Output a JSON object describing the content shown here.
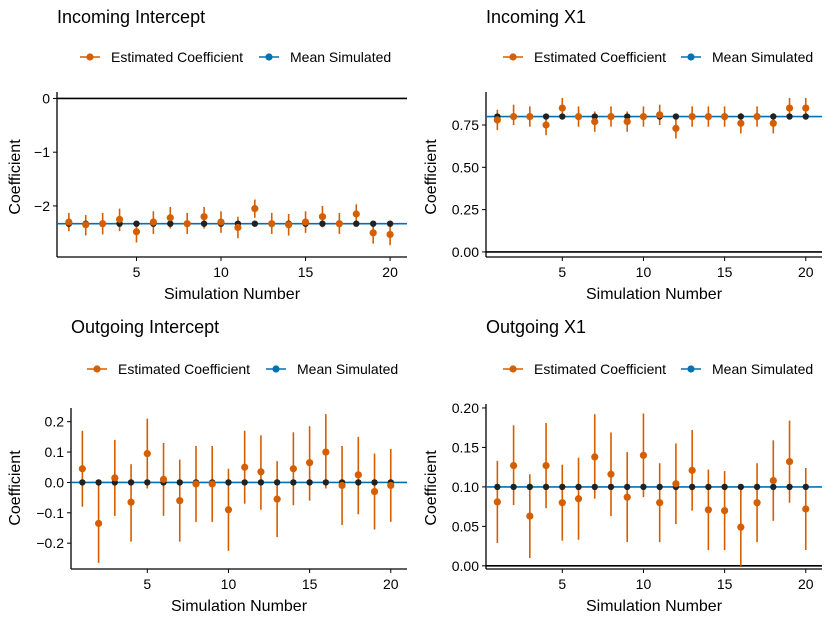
{
  "colors": {
    "estimated": "#d55e00",
    "simulated": "#0072b2",
    "axis": "#000000",
    "mean_point": "#222222"
  },
  "legend": {
    "estimated_label": "Estimated Coefficient",
    "simulated_label": "Mean Simulated"
  },
  "chart_data": [
    {
      "type": "scatter",
      "title": "Incoming Intercept",
      "xlabel": "Simulation Number",
      "ylabel": "Coefficient",
      "x": [
        1,
        2,
        3,
        4,
        5,
        6,
        7,
        8,
        9,
        10,
        11,
        12,
        13,
        14,
        15,
        16,
        17,
        18,
        19,
        20
      ],
      "xticks": [
        5,
        10,
        15,
        20
      ],
      "xlim": [
        0.3,
        21.0
      ],
      "ylim": [
        -2.95,
        0.12
      ],
      "yticks": [
        0,
        -1,
        -2
      ],
      "ytick_labels": [
        "0",
        "−1",
        "−2"
      ],
      "hline": 0,
      "mean_simulated": -2.33,
      "series": [
        {
          "name": "Estimated Coefficient",
          "values": [
            -2.3,
            -2.35,
            -2.33,
            -2.25,
            -2.48,
            -2.3,
            -2.22,
            -2.33,
            -2.2,
            -2.3,
            -2.4,
            -2.05,
            -2.33,
            -2.35,
            -2.3,
            -2.2,
            -2.33,
            -2.15,
            -2.5,
            -2.53
          ],
          "lower": [
            -2.47,
            -2.55,
            -2.53,
            -2.47,
            -2.68,
            -2.52,
            -2.42,
            -2.52,
            -2.42,
            -2.5,
            -2.6,
            -2.22,
            -2.52,
            -2.55,
            -2.5,
            -2.4,
            -2.52,
            -2.35,
            -2.7,
            -2.73
          ],
          "upper": [
            -2.13,
            -2.17,
            -2.13,
            -2.05,
            -2.28,
            -2.1,
            -2.02,
            -2.13,
            -2.02,
            -2.1,
            -2.2,
            -1.88,
            -2.13,
            -2.15,
            -2.1,
            -2.0,
            -2.13,
            -1.97,
            -2.3,
            -2.33
          ]
        }
      ]
    },
    {
      "type": "scatter",
      "title": "Incoming X1",
      "xlabel": "Simulation Number",
      "ylabel": "Coefficient",
      "x": [
        1,
        2,
        3,
        4,
        5,
        6,
        7,
        8,
        9,
        10,
        11,
        12,
        13,
        14,
        15,
        16,
        17,
        18,
        19,
        20
      ],
      "xticks": [
        5,
        10,
        15,
        20
      ],
      "xlim": [
        0.3,
        21.0
      ],
      "ylim": [
        -0.03,
        0.945
      ],
      "yticks": [
        0,
        0.25,
        0.5,
        0.75
      ],
      "ytick_labels": [
        "0.00",
        "0.25",
        "0.50",
        "0.75"
      ],
      "hline": 0,
      "mean_simulated": 0.8,
      "series": [
        {
          "name": "Estimated Coefficient",
          "values": [
            0.78,
            0.8,
            0.8,
            0.75,
            0.85,
            0.8,
            0.77,
            0.8,
            0.77,
            0.8,
            0.81,
            0.73,
            0.8,
            0.8,
            0.8,
            0.76,
            0.8,
            0.76,
            0.85,
            0.85
          ],
          "lower": [
            0.72,
            0.75,
            0.74,
            0.69,
            0.8,
            0.74,
            0.71,
            0.74,
            0.71,
            0.74,
            0.75,
            0.67,
            0.74,
            0.74,
            0.74,
            0.7,
            0.74,
            0.7,
            0.8,
            0.8
          ],
          "upper": [
            0.84,
            0.87,
            0.86,
            0.81,
            0.91,
            0.86,
            0.83,
            0.86,
            0.83,
            0.86,
            0.87,
            0.79,
            0.86,
            0.86,
            0.86,
            0.82,
            0.86,
            0.82,
            0.91,
            0.91
          ]
        }
      ]
    },
    {
      "type": "scatter",
      "title": "Outgoing Intercept",
      "xlabel": "Simulation Number",
      "ylabel": "Coefficient",
      "x": [
        1,
        2,
        3,
        4,
        5,
        6,
        7,
        8,
        9,
        10,
        11,
        12,
        13,
        14,
        15,
        16,
        17,
        18,
        19,
        20
      ],
      "xticks": [
        5,
        10,
        15,
        20
      ],
      "xlim": [
        0.3,
        21.0
      ],
      "ylim": [
        -0.285,
        0.245
      ],
      "yticks": [
        0.2,
        0.1,
        0,
        -0.1,
        -0.2
      ],
      "ytick_labels": [
        "0.2",
        "0.1",
        "0.0",
        "−0.1",
        "−0.2"
      ],
      "mean_simulated": 0.0,
      "series": [
        {
          "name": "Estimated Coefficient",
          "values": [
            0.045,
            -0.135,
            0.015,
            -0.065,
            0.095,
            0.01,
            -0.06,
            -0.005,
            -0.005,
            -0.09,
            0.05,
            0.035,
            -0.055,
            0.045,
            0.065,
            0.1,
            -0.01,
            0.025,
            -0.03,
            -0.01
          ],
          "lower": [
            -0.08,
            -0.265,
            -0.11,
            -0.195,
            -0.02,
            -0.11,
            -0.195,
            -0.13,
            -0.13,
            -0.225,
            -0.07,
            -0.09,
            -0.18,
            -0.075,
            -0.06,
            -0.02,
            -0.14,
            -0.105,
            -0.155,
            -0.13
          ],
          "upper": [
            0.17,
            -0.005,
            0.14,
            0.06,
            0.21,
            0.13,
            0.075,
            0.12,
            0.12,
            0.045,
            0.17,
            0.155,
            0.07,
            0.165,
            0.185,
            0.225,
            0.12,
            0.15,
            0.095,
            0.11
          ]
        }
      ]
    },
    {
      "type": "scatter",
      "title": "Outgoing X1",
      "xlabel": "Simulation Number",
      "ylabel": "Coefficient",
      "x": [
        1,
        2,
        3,
        4,
        5,
        6,
        7,
        8,
        9,
        10,
        11,
        12,
        13,
        14,
        15,
        16,
        17,
        18,
        19,
        20
      ],
      "xticks": [
        5,
        10,
        15,
        20
      ],
      "xlim": [
        0.3,
        21.0
      ],
      "ylim": [
        -0.004,
        0.205
      ],
      "yticks": [
        0,
        0.05,
        0.1,
        0.15,
        0.2
      ],
      "ytick_labels": [
        "0.00",
        "0.05",
        "0.10",
        "0.15",
        "0.20"
      ],
      "hline": 0,
      "mean_simulated": 0.1,
      "series": [
        {
          "name": "Estimated Coefficient",
          "values": [
            0.081,
            0.127,
            0.063,
            0.127,
            0.08,
            0.085,
            0.138,
            0.116,
            0.087,
            0.14,
            0.08,
            0.104,
            0.121,
            0.071,
            0.07,
            0.049,
            0.08,
            0.108,
            0.132,
            0.072
          ],
          "lower": [
            0.029,
            0.077,
            0.01,
            0.073,
            0.032,
            0.033,
            0.085,
            0.063,
            0.03,
            0.087,
            0.03,
            0.053,
            0.07,
            0.02,
            0.02,
            0.0,
            0.03,
            0.057,
            0.08,
            0.02
          ],
          "upper": [
            0.133,
            0.178,
            0.116,
            0.181,
            0.128,
            0.137,
            0.192,
            0.169,
            0.144,
            0.193,
            0.13,
            0.155,
            0.172,
            0.122,
            0.12,
            0.099,
            0.13,
            0.159,
            0.184,
            0.124
          ]
        }
      ]
    }
  ]
}
